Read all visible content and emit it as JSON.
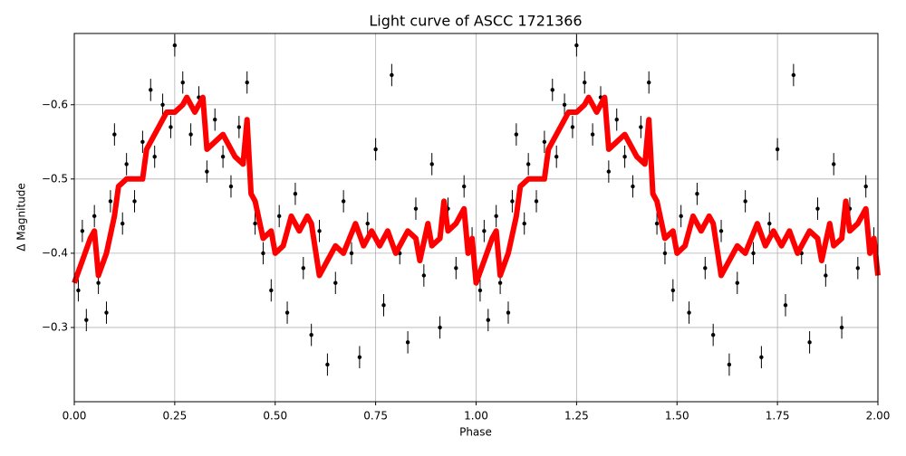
{
  "chart_data": {
    "type": "scatter",
    "title": "Light curve of ASCC 1721366",
    "xlabel": "Phase",
    "ylabel": "Δ Magnitude",
    "xlim": [
      0,
      2
    ],
    "ylim": [
      -0.2,
      -0.696
    ],
    "xticks": [
      {
        "value": 0,
        "label": "0.00"
      },
      {
        "value": 0.25,
        "label": "0.25"
      },
      {
        "value": 0.5,
        "label": "0.50"
      },
      {
        "value": 0.75,
        "label": "0.75"
      },
      {
        "value": 1,
        "label": "1.00"
      },
      {
        "value": 1.25,
        "label": "1.25"
      },
      {
        "value": 1.5,
        "label": "1.50"
      },
      {
        "value": 1.75,
        "label": "1.75"
      },
      {
        "value": 2,
        "label": "2.00"
      }
    ],
    "yticks": [
      {
        "value": -0.3,
        "label": "−0.3"
      },
      {
        "value": -0.4,
        "label": "−0.4"
      },
      {
        "value": -0.5,
        "label": "−0.5"
      },
      {
        "value": -0.6,
        "label": "−0.6"
      }
    ],
    "grid": true,
    "points": {
      "color": "#000000",
      "yerr": 0.015,
      "x": [
        0.01,
        0.02,
        0.03,
        0.05,
        0.06,
        0.08,
        0.09,
        0.1,
        0.12,
        0.13,
        0.15,
        0.17,
        0.19,
        0.2,
        0.22,
        0.24,
        0.25,
        0.27,
        0.29,
        0.31,
        0.33,
        0.35,
        0.37,
        0.39,
        0.41,
        0.43,
        0.45,
        0.47,
        0.49,
        0.51,
        0.53,
        0.55,
        0.57,
        0.59,
        0.61,
        0.63,
        0.65,
        0.67,
        0.69,
        0.71,
        0.73,
        0.75,
        0.77,
        0.79,
        0.81,
        0.83,
        0.85,
        0.87,
        0.89,
        0.91,
        0.93,
        0.95,
        0.97,
        0.99,
        1.01,
        1.02,
        1.03,
        1.05,
        1.06,
        1.08,
        1.09,
        1.1,
        1.12,
        1.13,
        1.15,
        1.17,
        1.19,
        1.2,
        1.22,
        1.24,
        1.25,
        1.27,
        1.29,
        1.31,
        1.33,
        1.35,
        1.37,
        1.39,
        1.41,
        1.43,
        1.45,
        1.47,
        1.49,
        1.51,
        1.53,
        1.55,
        1.57,
        1.59,
        1.61,
        1.63,
        1.65,
        1.67,
        1.69,
        1.71,
        1.73,
        1.75,
        1.77,
        1.79,
        1.81,
        1.83,
        1.85,
        1.87,
        1.89,
        1.91,
        1.93,
        1.95,
        1.97,
        1.99
      ],
      "y": [
        -0.35,
        -0.43,
        -0.31,
        -0.45,
        -0.36,
        -0.32,
        -0.47,
        -0.56,
        -0.44,
        -0.52,
        -0.47,
        -0.55,
        -0.62,
        -0.53,
        -0.6,
        -0.57,
        -0.68,
        -0.63,
        -0.56,
        -0.61,
        -0.51,
        -0.58,
        -0.53,
        -0.49,
        -0.57,
        -0.63,
        -0.44,
        -0.4,
        -0.35,
        -0.45,
        -0.32,
        -0.48,
        -0.38,
        -0.29,
        -0.43,
        -0.25,
        -0.36,
        -0.47,
        -0.4,
        -0.26,
        -0.44,
        -0.54,
        -0.33,
        -0.64,
        -0.4,
        -0.28,
        -0.46,
        -0.37,
        -0.52,
        -0.3,
        -0.46,
        -0.38,
        -0.49,
        -0.42,
        -0.35,
        -0.43,
        -0.31,
        -0.45,
        -0.36,
        -0.32,
        -0.47,
        -0.56,
        -0.44,
        -0.52,
        -0.47,
        -0.55,
        -0.62,
        -0.53,
        -0.6,
        -0.57,
        -0.68,
        -0.63,
        -0.56,
        -0.61,
        -0.51,
        -0.58,
        -0.53,
        -0.49,
        -0.57,
        -0.63,
        -0.44,
        -0.4,
        -0.35,
        -0.45,
        -0.32,
        -0.48,
        -0.38,
        -0.29,
        -0.43,
        -0.25,
        -0.36,
        -0.47,
        -0.4,
        -0.26,
        -0.44,
        -0.54,
        -0.33,
        -0.64,
        -0.4,
        -0.28,
        -0.46,
        -0.37,
        -0.52,
        -0.3,
        -0.46,
        -0.38,
        -0.49,
        -0.42
      ]
    },
    "curve": {
      "color": "#ff0000",
      "x": [
        0,
        0.02,
        0.04,
        0.05,
        0.06,
        0.08,
        0.1,
        0.11,
        0.13,
        0.17,
        0.18,
        0.2,
        0.23,
        0.25,
        0.27,
        0.28,
        0.3,
        0.32,
        0.33,
        0.37,
        0.4,
        0.42,
        0.43,
        0.44,
        0.45,
        0.47,
        0.49,
        0.5,
        0.52,
        0.54,
        0.56,
        0.58,
        0.59,
        0.61,
        0.63,
        0.65,
        0.67,
        0.7,
        0.72,
        0.74,
        0.76,
        0.78,
        0.8,
        0.83,
        0.85,
        0.86,
        0.88,
        0.89,
        0.91,
        0.92,
        0.93,
        0.95,
        0.97,
        0.98,
        0.99,
        1.0,
        1.02,
        1.04,
        1.05,
        1.06,
        1.08,
        1.1,
        1.11,
        1.13,
        1.17,
        1.18,
        1.2,
        1.23,
        1.25,
        1.27,
        1.28,
        1.3,
        1.32,
        1.33,
        1.37,
        1.4,
        1.42,
        1.43,
        1.44,
        1.45,
        1.47,
        1.49,
        1.5,
        1.52,
        1.54,
        1.56,
        1.58,
        1.59,
        1.61,
        1.63,
        1.65,
        1.67,
        1.7,
        1.72,
        1.74,
        1.76,
        1.78,
        1.8,
        1.83,
        1.85,
        1.86,
        1.88,
        1.89,
        1.91,
        1.92,
        1.93,
        1.95,
        1.97,
        1.98,
        1.99,
        2.0
      ],
      "y": [
        -0.36,
        -0.39,
        -0.42,
        -0.43,
        -0.37,
        -0.4,
        -0.45,
        -0.49,
        -0.5,
        -0.5,
        -0.54,
        -0.56,
        -0.59,
        -0.59,
        -0.6,
        -0.61,
        -0.59,
        -0.61,
        -0.54,
        -0.56,
        -0.53,
        -0.52,
        -0.58,
        -0.48,
        -0.47,
        -0.42,
        -0.43,
        -0.4,
        -0.41,
        -0.45,
        -0.43,
        -0.45,
        -0.44,
        -0.37,
        -0.39,
        -0.41,
        -0.4,
        -0.44,
        -0.41,
        -0.43,
        -0.41,
        -0.43,
        -0.4,
        -0.43,
        -0.42,
        -0.39,
        -0.44,
        -0.41,
        -0.42,
        -0.47,
        -0.43,
        -0.44,
        -0.46,
        -0.4,
        -0.42,
        -0.36,
        -0.39,
        -0.42,
        -0.43,
        -0.37,
        -0.4,
        -0.45,
        -0.49,
        -0.5,
        -0.5,
        -0.54,
        -0.56,
        -0.59,
        -0.59,
        -0.6,
        -0.61,
        -0.59,
        -0.61,
        -0.54,
        -0.56,
        -0.53,
        -0.52,
        -0.58,
        -0.48,
        -0.47,
        -0.42,
        -0.43,
        -0.4,
        -0.41,
        -0.45,
        -0.43,
        -0.45,
        -0.44,
        -0.37,
        -0.39,
        -0.41,
        -0.4,
        -0.44,
        -0.41,
        -0.43,
        -0.41,
        -0.43,
        -0.4,
        -0.43,
        -0.42,
        -0.39,
        -0.44,
        -0.41,
        -0.42,
        -0.47,
        -0.43,
        -0.44,
        -0.46,
        -0.4,
        -0.42,
        -0.37
      ]
    }
  }
}
